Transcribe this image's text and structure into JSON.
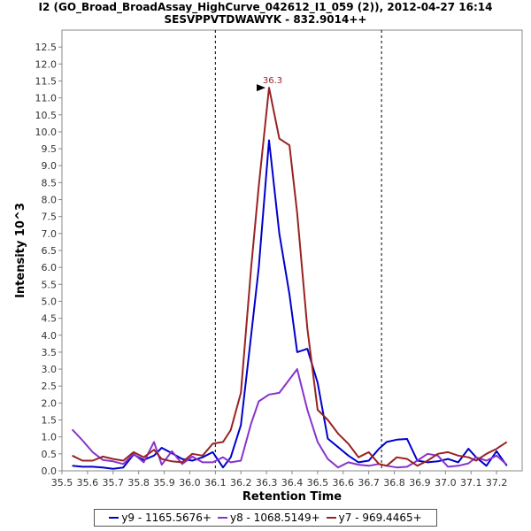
{
  "chart_data": {
    "type": "line",
    "title": "I2 (GO_Broad_BroadAssay_HighCurve_042612_I1_059 (2)), 2012-04-27 16:14",
    "subtitle": "SESVPPVTDWAWYK - 832.9014++",
    "xlabel": "Retention Time",
    "ylabel": "Intensity 10^3",
    "xlim": [
      35.5,
      37.3
    ],
    "ylim": [
      0,
      13.0
    ],
    "x_ticks": [
      "35.5",
      "35.6",
      "35.7",
      "35.8",
      "35.9",
      "36.0",
      "36.1",
      "36.2",
      "36.3",
      "36.4",
      "36.5",
      "36.6",
      "36.7",
      "36.8",
      "36.9",
      "37.0",
      "37.1",
      "37.2"
    ],
    "y_ticks": [
      "0.0",
      "0.5",
      "1.0",
      "1.5",
      "2.0",
      "2.5",
      "3.0",
      "3.5",
      "4.0",
      "4.5",
      "5.0",
      "5.5",
      "6.0",
      "6.5",
      "7.0",
      "7.5",
      "8.0",
      "8.5",
      "9.0",
      "9.5",
      "10.0",
      "10.5",
      "11.0",
      "11.5",
      "12.0",
      "12.5"
    ],
    "grid": false,
    "legend_position": "bottom",
    "x": [
      35.54,
      35.58,
      35.62,
      35.66,
      35.7,
      35.74,
      35.78,
      35.82,
      35.86,
      35.89,
      35.93,
      35.97,
      36.01,
      36.05,
      36.09,
      36.13,
      36.16,
      36.2,
      36.24,
      36.27,
      36.31,
      36.35,
      36.39,
      36.42,
      36.46,
      36.5,
      36.54,
      36.58,
      36.62,
      36.66,
      36.7,
      36.74,
      36.77,
      36.81,
      36.85,
      36.89,
      36.93,
      36.97,
      37.01,
      37.05,
      37.09,
      37.12,
      37.16,
      37.2,
      37.24
    ],
    "series": [
      {
        "name": "y9 - 1165.5676+",
        "color": "#0000cc",
        "values": [
          0.15,
          0.12,
          0.12,
          0.1,
          0.06,
          0.1,
          0.48,
          0.32,
          0.45,
          0.68,
          0.52,
          0.35,
          0.3,
          0.4,
          0.55,
          0.1,
          0.4,
          1.35,
          4.0,
          6.0,
          9.75,
          7.0,
          5.2,
          3.5,
          3.6,
          2.6,
          0.95,
          0.7,
          0.45,
          0.25,
          0.3,
          0.65,
          0.85,
          0.92,
          0.94,
          0.3,
          0.25,
          0.28,
          0.35,
          0.25,
          0.65,
          0.4,
          0.15,
          0.58,
          0.15
        ]
      },
      {
        "name": "y8 - 1068.5149+",
        "color": "#8833cc",
        "values": [
          1.22,
          0.9,
          0.55,
          0.32,
          0.28,
          0.2,
          0.5,
          0.25,
          0.85,
          0.18,
          0.58,
          0.2,
          0.42,
          0.25,
          0.25,
          0.4,
          0.25,
          0.3,
          1.4,
          2.05,
          2.25,
          2.3,
          2.7,
          3.0,
          1.8,
          0.85,
          0.35,
          0.1,
          0.25,
          0.18,
          0.15,
          0.2,
          0.15,
          0.1,
          0.12,
          0.3,
          0.5,
          0.45,
          0.12,
          0.15,
          0.22,
          0.4,
          0.3,
          0.45,
          0.18
        ]
      },
      {
        "name": "y7 - 969.4465+",
        "color": "#992222",
        "values": [
          0.45,
          0.3,
          0.3,
          0.42,
          0.35,
          0.3,
          0.55,
          0.4,
          0.62,
          0.35,
          0.28,
          0.25,
          0.5,
          0.45,
          0.8,
          0.85,
          1.2,
          2.3,
          6.0,
          8.4,
          11.3,
          9.8,
          9.6,
          7.6,
          4.2,
          1.8,
          1.5,
          1.1,
          0.8,
          0.4,
          0.55,
          0.2,
          0.15,
          0.4,
          0.35,
          0.15,
          0.3,
          0.5,
          0.55,
          0.45,
          0.4,
          0.3,
          0.5,
          0.65,
          0.85
        ]
      }
    ],
    "vertical_markers": [
      36.1,
      36.75
    ],
    "annotations": [
      {
        "text": "36.3",
        "x": 36.31,
        "y": 11.3
      }
    ]
  }
}
